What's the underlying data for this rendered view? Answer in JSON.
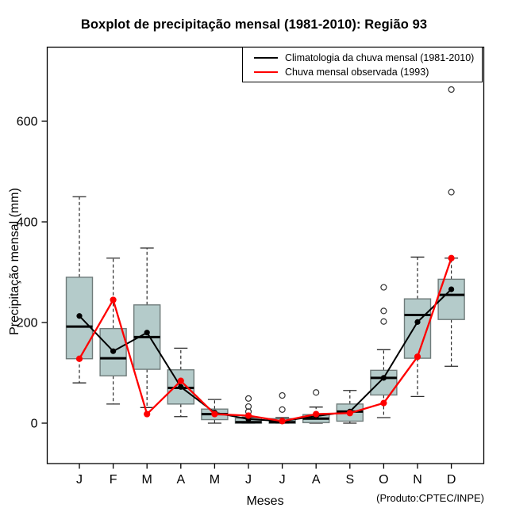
{
  "title": "Boxplot de precipitação mensal (1981-2010): Região 93",
  "axes": {
    "y_label": "Precipitação mensal (mm)",
    "x_label": "Meses",
    "y_ticks": [
      0,
      200,
      400,
      600
    ],
    "credit": "(Produto:CPTEC/INPE)"
  },
  "legend": [
    {
      "label": "Climatologia da chuva mensal (1981-2010)",
      "color": "#000000"
    },
    {
      "label": "Chuva mensal observada (1993)",
      "color": "#ff0000"
    }
  ],
  "chart_data": {
    "type": "boxplot-with-lines",
    "title": "Boxplot de precipitação mensal (1981-2010): Região 93",
    "xlabel": "Meses",
    "ylabel": "Precipitação mensal (mm)",
    "ylim": [
      -80,
      750
    ],
    "grid": false,
    "legend_position": "top-right",
    "categories": [
      "J",
      "F",
      "M",
      "A",
      "M",
      "J",
      "J",
      "A",
      "S",
      "O",
      "N",
      "D"
    ],
    "boxes": [
      {
        "whisker_low": 80,
        "q1": 128,
        "median": 192,
        "q3": 290,
        "whisker_high": 450,
        "outliers": []
      },
      {
        "whisker_low": 38,
        "q1": 94,
        "median": 129,
        "q3": 188,
        "whisker_high": 328,
        "outliers": []
      },
      {
        "whisker_low": 31,
        "q1": 107,
        "median": 171,
        "q3": 235,
        "whisker_high": 348,
        "outliers": []
      },
      {
        "whisker_low": 13,
        "q1": 38,
        "median": 70,
        "q3": 106,
        "whisker_high": 149,
        "outliers": []
      },
      {
        "whisker_low": 0,
        "q1": 7,
        "median": 18,
        "q3": 28,
        "whisker_high": 47,
        "outliers": []
      },
      {
        "whisker_low": 0,
        "q1": 0,
        "median": 2,
        "q3": 10,
        "whisker_high": 12,
        "outliers": [
          23,
          33,
          49
        ]
      },
      {
        "whisker_low": 0,
        "q1": 0,
        "median": 2,
        "q3": 9,
        "whisker_high": 11,
        "outliers": [
          27,
          55
        ]
      },
      {
        "whisker_low": 0,
        "q1": 1,
        "median": 9,
        "q3": 17,
        "whisker_high": 32,
        "outliers": [
          61
        ]
      },
      {
        "whisker_low": 0,
        "q1": 4,
        "median": 23,
        "q3": 38,
        "whisker_high": 65,
        "outliers": []
      },
      {
        "whisker_low": 11,
        "q1": 56,
        "median": 90,
        "q3": 105,
        "whisker_high": 146,
        "outliers": [
          202,
          223,
          270
        ]
      },
      {
        "whisker_low": 53,
        "q1": 129,
        "median": 215,
        "q3": 247,
        "whisker_high": 330,
        "outliers": []
      },
      {
        "whisker_low": 113,
        "q1": 206,
        "median": 255,
        "q3": 286,
        "whisker_high": 328,
        "outliers": [
          459,
          663
        ]
      }
    ],
    "series": [
      {
        "name": "Climatologia da chuva mensal (1981-2010)",
        "color": "#000000",
        "values": [
          213,
          143,
          180,
          72,
          21,
          8,
          4,
          14,
          23,
          90,
          201,
          266
        ]
      },
      {
        "name": "Chuva mensal observada (1993)",
        "color": "#ff0000",
        "values": [
          128,
          245,
          18,
          84,
          18,
          15,
          4,
          18,
          20,
          40,
          132,
          328
        ]
      }
    ],
    "colors": {
      "box_fill": "#b4cbca",
      "box_stroke": "#6f7b7a"
    }
  }
}
